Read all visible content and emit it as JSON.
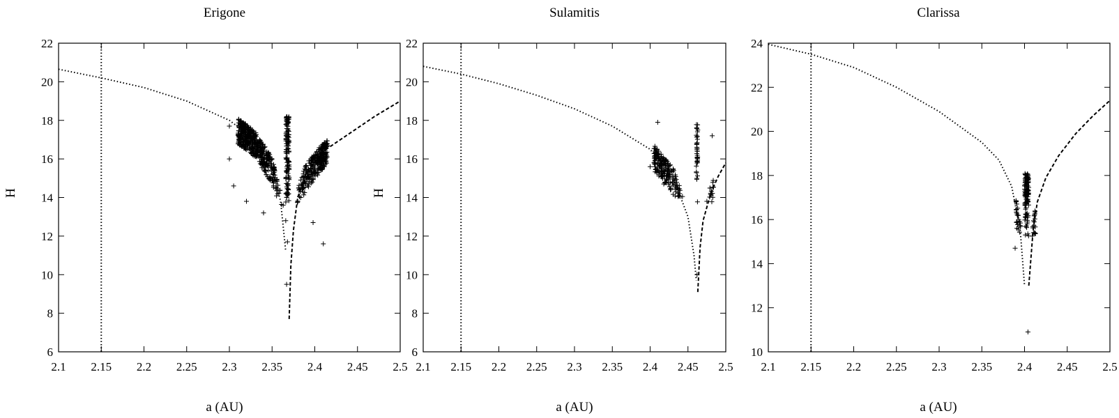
{
  "chart_data": [
    {
      "type": "scatter",
      "title": "Erigone",
      "xlabel": "a (AU)",
      "ylabel": "H",
      "xlim": [
        2.1,
        2.5
      ],
      "ylim": [
        6,
        22
      ],
      "xticks": [
        "2.1",
        "2.15",
        "2.2",
        "2.25",
        "2.3",
        "2.35",
        "2.4",
        "2.45",
        "2.5"
      ],
      "yticks": [
        "6",
        "8",
        "10",
        "12",
        "14",
        "16",
        "18",
        "20",
        "22"
      ],
      "vline_x": 2.15,
      "left_curve": {
        "x": [
          2.1,
          2.15,
          2.2,
          2.25,
          2.3,
          2.33,
          2.35,
          2.36,
          2.366
        ],
        "y": [
          20.65,
          20.2,
          19.7,
          19.0,
          18.0,
          17.0,
          15.6,
          13.8,
          11.2
        ]
      },
      "right_curve": {
        "x": [
          2.37,
          2.372,
          2.375,
          2.38,
          2.39,
          2.41,
          2.44,
          2.47,
          2.5
        ],
        "y": [
          7.7,
          10.5,
          12.3,
          14.0,
          15.3,
          16.4,
          17.3,
          18.2,
          19.0
        ]
      },
      "cluster": {
        "x_range": [
          2.31,
          2.415
        ],
        "y_range": [
          13.5,
          18.2
        ],
        "count": 900
      },
      "points": [
        {
          "x": 2.32,
          "y": 13.8
        },
        {
          "x": 2.34,
          "y": 13.2
        },
        {
          "x": 2.363,
          "y": 13.6
        },
        {
          "x": 2.366,
          "y": 12.8
        },
        {
          "x": 2.368,
          "y": 11.7
        },
        {
          "x": 2.367,
          "y": 9.5
        },
        {
          "x": 2.398,
          "y": 12.7
        },
        {
          "x": 2.41,
          "y": 11.6
        },
        {
          "x": 2.3,
          "y": 16.0
        },
        {
          "x": 2.305,
          "y": 14.6
        },
        {
          "x": 2.3,
          "y": 17.7
        }
      ]
    },
    {
      "type": "scatter",
      "title": "Sulamitis",
      "xlabel": "a (AU)",
      "ylabel": "H",
      "xlim": [
        2.1,
        2.5
      ],
      "ylim": [
        6,
        22
      ],
      "xticks": [
        "2.1",
        "2.15",
        "2.2",
        "2.25",
        "2.3",
        "2.35",
        "2.4",
        "2.45",
        "2.5"
      ],
      "yticks": [
        "6",
        "8",
        "10",
        "12",
        "14",
        "16",
        "18",
        "20",
        "22"
      ],
      "vline_x": 2.15,
      "left_curve": {
        "x": [
          2.1,
          2.15,
          2.2,
          2.25,
          2.3,
          2.35,
          2.4,
          2.43,
          2.45,
          2.458,
          2.461
        ],
        "y": [
          20.8,
          20.4,
          19.9,
          19.3,
          18.6,
          17.7,
          16.5,
          15.1,
          13.0,
          11.0,
          9.7
        ]
      },
      "right_curve": {
        "x": [
          2.463,
          2.466,
          2.47,
          2.48,
          2.49,
          2.5
        ],
        "y": [
          9.1,
          11.4,
          12.8,
          14.2,
          15.1,
          15.8
        ]
      },
      "cluster": {
        "x_range": [
          2.405,
          2.485
        ],
        "y_range": [
          13.6,
          17.9
        ],
        "count": 240
      },
      "points": [
        {
          "x": 2.4,
          "y": 15.6
        },
        {
          "x": 2.418,
          "y": 14.7
        },
        {
          "x": 2.424,
          "y": 14.7
        },
        {
          "x": 2.462,
          "y": 10.0
        },
        {
          "x": 2.475,
          "y": 13.8
        },
        {
          "x": 2.482,
          "y": 17.2
        },
        {
          "x": 2.41,
          "y": 17.9
        }
      ]
    },
    {
      "type": "scatter",
      "title": "Clarissa",
      "xlabel": "a (AU)",
      "ylabel": "",
      "xlim": [
        2.1,
        2.5
      ],
      "ylim": [
        10,
        24
      ],
      "xticks": [
        "2.1",
        "2.15",
        "2.2",
        "2.25",
        "2.3",
        "2.35",
        "2.4",
        "2.45",
        "2.5"
      ],
      "yticks": [
        "10",
        "12",
        "14",
        "16",
        "18",
        "20",
        "22",
        "24"
      ],
      "vline_x": 2.15,
      "left_curve": {
        "x": [
          2.1,
          2.15,
          2.2,
          2.25,
          2.3,
          2.35,
          2.37,
          2.385,
          2.395,
          2.4
        ],
        "y": [
          23.95,
          23.5,
          22.9,
          22.0,
          20.9,
          19.5,
          18.7,
          17.5,
          15.5,
          13.0
        ]
      },
      "right_curve": {
        "x": [
          2.405,
          2.41,
          2.415,
          2.425,
          2.44,
          2.46,
          2.48,
          2.5
        ],
        "y": [
          13.0,
          15.5,
          16.8,
          17.9,
          18.9,
          19.9,
          20.7,
          21.4
        ]
      },
      "cluster": {
        "x_range": [
          2.39,
          2.413
        ],
        "y_range": [
          15.2,
          18.1
        ],
        "count": 160
      },
      "points": [
        {
          "x": 2.389,
          "y": 14.7
        },
        {
          "x": 2.404,
          "y": 10.9
        },
        {
          "x": 2.401,
          "y": 15.3
        },
        {
          "x": 2.412,
          "y": 15.4
        }
      ]
    }
  ]
}
